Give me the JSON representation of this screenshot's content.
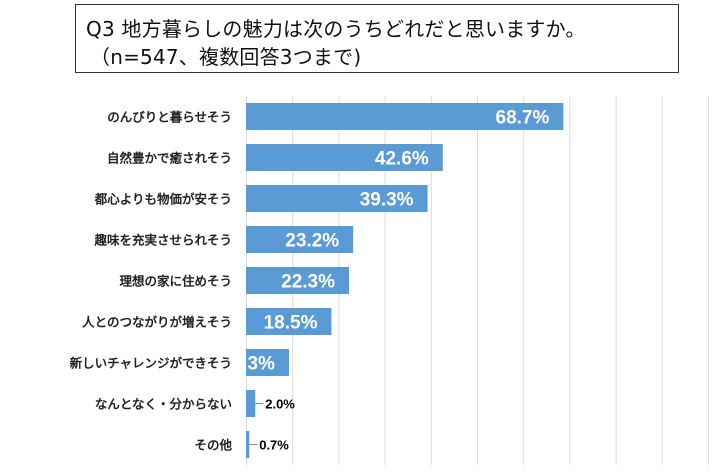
{
  "chart_data": {
    "type": "bar",
    "orientation": "horizontal",
    "title": "Q3 地方暮らしの魅力は次のうちどれだと思いますか。",
    "subtitle": "（n=547、複数回答3つまで)",
    "categories": [
      "のんびりと暮らせそう",
      "自然豊かで癒されそう",
      "都心よりも物価が安そう",
      "趣味を充実させられそう",
      "理想の家に住めそう",
      "人とのつながりが増えそう",
      "新しいチャレンジができそう",
      "なんとなく・分からない",
      "その他"
    ],
    "values": [
      68.7,
      42.6,
      39.3,
      23.2,
      22.3,
      18.5,
      9.3,
      2.0,
      0.7
    ],
    "value_labels": [
      "68.7%",
      "42.6%",
      "39.3%",
      "23.2%",
      "22.3%",
      "18.5%",
      "9.3%",
      "2.0%",
      "0.7%"
    ],
    "xlim": [
      0,
      100
    ],
    "grid": true,
    "legend": "none",
    "colors": {
      "bar": "#5B9BD5",
      "label_inside": "#ffffff",
      "label_outside": "#000000",
      "grid": "#d9d9d9",
      "category_text": "#222222"
    }
  }
}
